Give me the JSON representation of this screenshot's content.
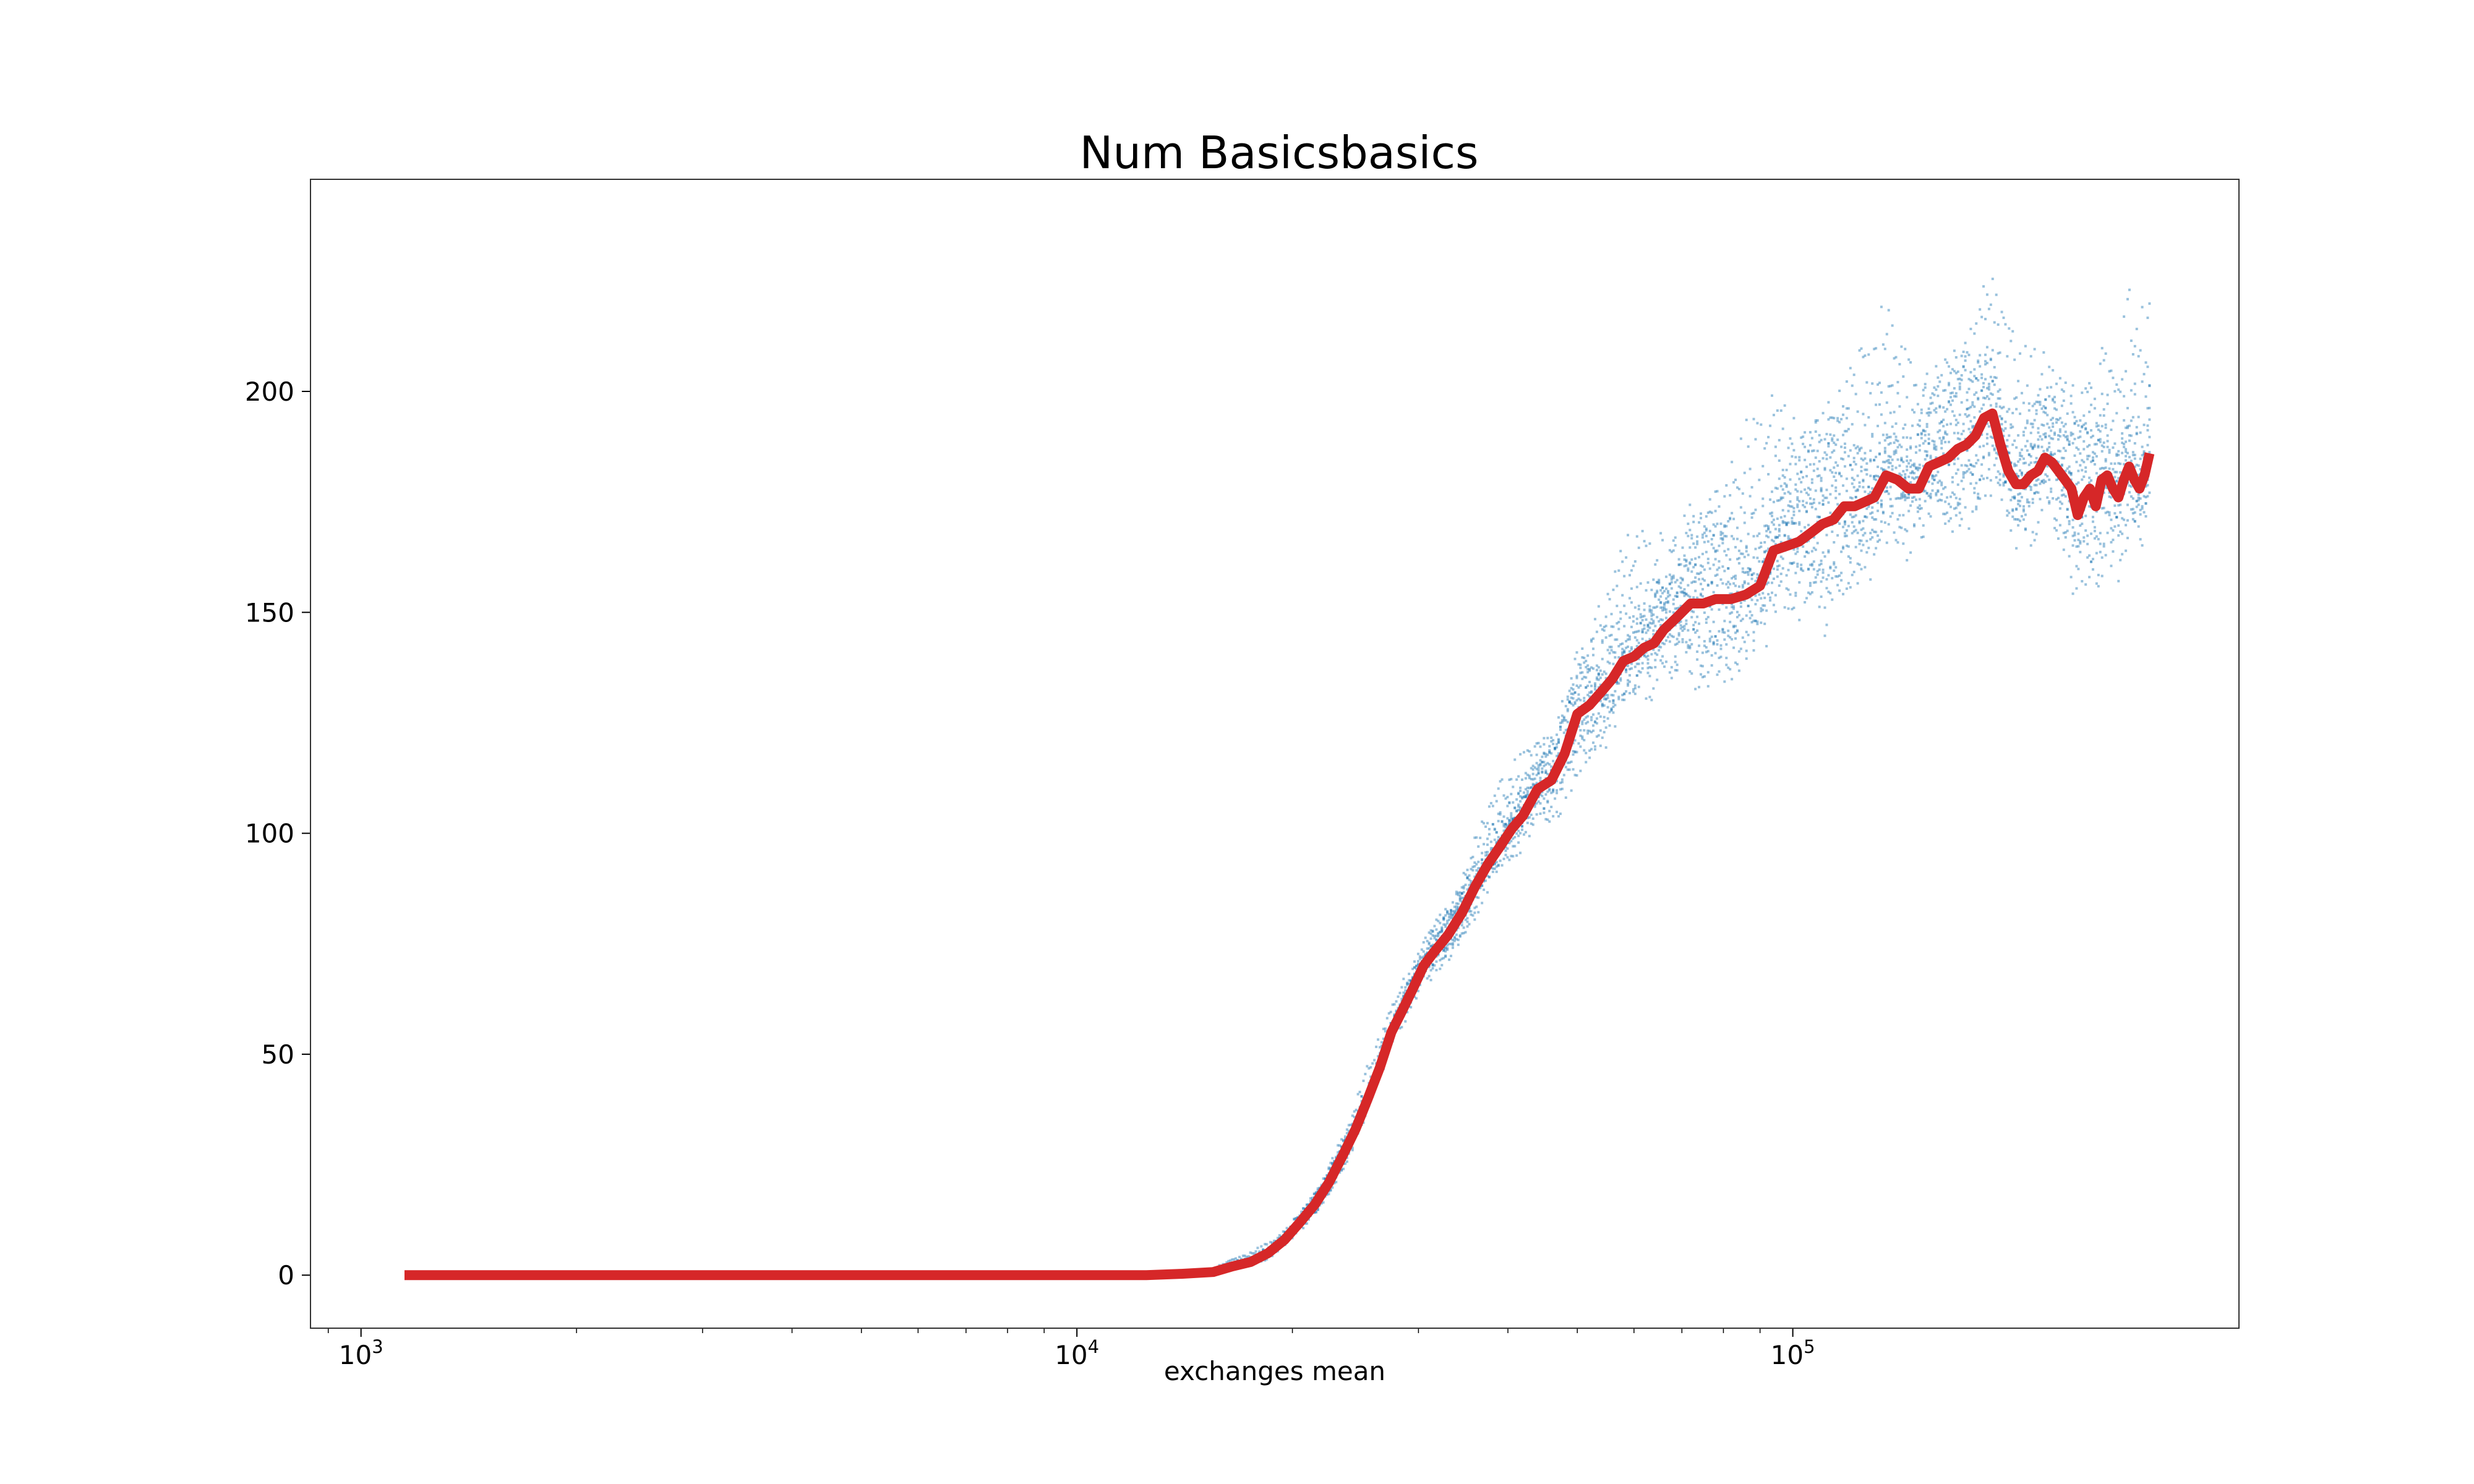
{
  "chart_data": {
    "type": "line",
    "title": "Num Basicsbasics",
    "xlabel": "exchanges mean",
    "ylabel": "",
    "xscale": "log",
    "xlim": [
      850,
      420000
    ],
    "ylim": [
      -12,
      248
    ],
    "grid": false,
    "legend": "none",
    "x_ticks": [
      {
        "value": 1000,
        "base": "10",
        "exp": "3"
      },
      {
        "value": 10000,
        "base": "10",
        "exp": "4"
      },
      {
        "value": 100000,
        "base": "10",
        "exp": "5"
      }
    ],
    "y_ticks": [
      {
        "value": 0,
        "label": "0"
      },
      {
        "value": 50,
        "label": "50"
      },
      {
        "value": 100,
        "label": "100"
      },
      {
        "value": 150,
        "label": "150"
      },
      {
        "value": 200,
        "label": "200"
      }
    ],
    "series": [
      {
        "kind": "mean-line",
        "color": "#d62728",
        "x": [
          1150,
          2000,
          5000,
          10000,
          12500,
          14000,
          15500,
          16500,
          17500,
          18500,
          19500,
          20500,
          21500,
          22500,
          23500,
          24500,
          25500,
          26500,
          27500,
          28500,
          29500,
          30500,
          31500,
          33000,
          34500,
          36000,
          37500,
          39000,
          40500,
          42000,
          44000,
          46000,
          48000,
          50000,
          52000,
          54000,
          56000,
          58000,
          60000,
          62000,
          64000,
          66000,
          69000,
          72000,
          75000,
          78000,
          82000,
          86000,
          90000,
          94000,
          98000,
          102000,
          106000,
          110000,
          114000,
          118000,
          122000,
          126000,
          130000,
          135000,
          140000,
          145000,
          150000,
          155000,
          160000,
          165000,
          170000,
          175000,
          180000,
          185000,
          190000,
          195000,
          200000,
          205000,
          210000,
          215000,
          220000,
          225000,
          230000,
          235000,
          240000,
          245000,
          250000,
          255000,
          260000,
          265000,
          270000,
          275000,
          280000,
          285000,
          290000,
          295000,
          300000,
          305000,
          310000,
          315000
        ],
        "y": [
          0,
          0,
          0,
          0,
          0,
          0.3,
          0.7,
          2,
          3,
          5,
          8,
          12,
          16,
          21,
          27,
          33,
          40,
          47,
          55,
          60,
          65,
          70,
          73,
          77,
          82,
          88,
          93,
          97,
          101,
          104,
          110,
          112,
          118,
          127,
          129,
          132,
          135,
          139,
          140,
          142,
          143,
          146,
          149,
          152,
          152,
          153,
          153,
          154,
          156,
          164,
          165,
          166,
          168,
          170,
          171,
          174,
          174,
          175,
          176,
          181,
          180,
          178,
          178,
          183,
          184,
          185,
          187,
          188,
          190,
          194,
          195,
          188,
          182,
          179,
          179,
          181,
          182,
          185,
          184,
          182,
          180,
          178,
          172,
          176,
          178,
          174,
          180,
          181,
          178,
          176,
          180,
          183,
          180,
          178,
          181,
          186
        ]
      },
      {
        "kind": "scatter-points",
        "color": "#1f77b4",
        "runs": 10,
        "spread": [
          [
            15000,
            0.6
          ],
          [
            16000,
            1.0
          ],
          [
            17000,
            1.3
          ],
          [
            18000,
            1.8
          ],
          [
            19000,
            2.2
          ],
          [
            20000,
            2.6
          ],
          [
            22000,
            3.5
          ],
          [
            24000,
            4.5
          ],
          [
            26000,
            5.5
          ],
          [
            28000,
            6.0
          ],
          [
            30000,
            6.5
          ],
          [
            33000,
            7.5
          ],
          [
            36000,
            9.0
          ],
          [
            40000,
            11.0
          ],
          [
            45000,
            13.0
          ],
          [
            50000,
            16.0
          ],
          [
            55000,
            18.0
          ],
          [
            60000,
            20.0
          ],
          [
            66000,
            22.0
          ],
          [
            72000,
            24.0
          ],
          [
            80000,
            26.0
          ],
          [
            90000,
            28.0
          ],
          [
            100000,
            30.0
          ],
          [
            120000,
            29.0
          ],
          [
            140000,
            26.0
          ],
          [
            160000,
            25.0
          ],
          [
            180000,
            25.0
          ],
          [
            200000,
            24.0
          ],
          [
            230000,
            25.0
          ],
          [
            260000,
            27.0
          ],
          [
            290000,
            28.0
          ],
          [
            315000,
            28.0
          ]
        ]
      }
    ]
  }
}
